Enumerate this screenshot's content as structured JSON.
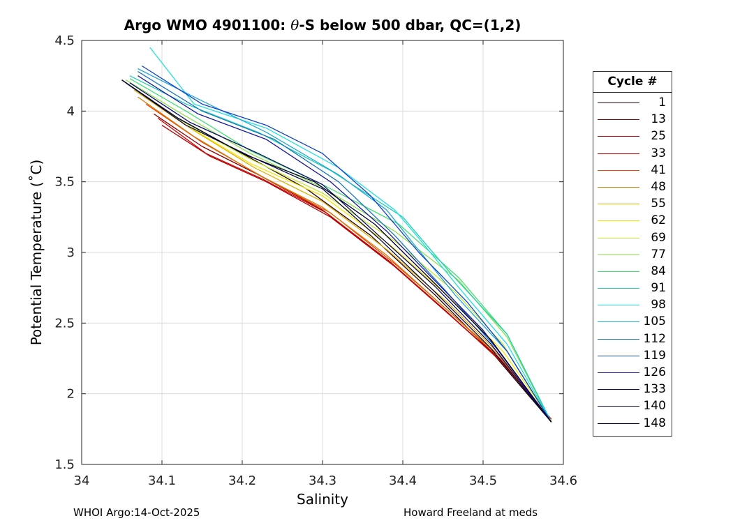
{
  "title_prefix": "Argo WMO 4901100: ",
  "title_theta": "θ",
  "title_suffix": "-S below 500 dbar,  QC=(1,2)",
  "footer": {
    "left": "WHOI Argo:14-Oct-2025",
    "right": "Howard Freeland at meds"
  },
  "legend": {
    "title": "Cycle #",
    "items": [
      {
        "label": "1",
        "color": "#2a0000"
      },
      {
        "label": "13",
        "color": "#8b0000"
      },
      {
        "label": "25",
        "color": "#b30000"
      },
      {
        "label": "33",
        "color": "#d40000"
      },
      {
        "label": "41",
        "color": "#e84a00"
      },
      {
        "label": "48",
        "color": "#d97800"
      },
      {
        "label": "55",
        "color": "#e0b000"
      },
      {
        "label": "62",
        "color": "#f2e600"
      },
      {
        "label": "69",
        "color": "#c6e830"
      },
      {
        "label": "77",
        "color": "#8ce04a"
      },
      {
        "label": "84",
        "color": "#40e070"
      },
      {
        "label": "91",
        "color": "#20d0b0"
      },
      {
        "label": "98",
        "color": "#20e0e0"
      },
      {
        "label": "105",
        "color": "#20a8d8"
      },
      {
        "label": "112",
        "color": "#1878c0"
      },
      {
        "label": "119",
        "color": "#1040d0"
      },
      {
        "label": "126",
        "color": "#1818a0"
      },
      {
        "label": "133",
        "color": "#0c0c70"
      },
      {
        "label": "140",
        "color": "#080840"
      },
      {
        "label": "148",
        "color": "#000030"
      }
    ]
  },
  "chart_data": {
    "type": "line",
    "title": "Argo WMO 4901100: θ-S below 500 dbar,  QC=(1,2)",
    "xlabel": "Salinity",
    "ylabel": "Potential Temperature (˚C)",
    "xlim": [
      34,
      34.6
    ],
    "ylim": [
      1.5,
      4.5
    ],
    "xticks": [
      "34",
      "34.1",
      "34.2",
      "34.3",
      "34.4",
      "34.5",
      "34.6"
    ],
    "yticks": [
      "1.5",
      "2",
      "2.5",
      "3",
      "3.5",
      "4",
      "4.5"
    ],
    "grid": true,
    "series": [
      {
        "name": "1",
        "color": "#2a0000",
        "x": [
          34.05,
          34.12,
          34.2,
          34.28,
          34.36,
          34.44,
          34.51,
          34.585
        ],
        "y": [
          4.22,
          3.95,
          3.7,
          3.45,
          3.12,
          2.7,
          2.3,
          1.8
        ]
      },
      {
        "name": "13",
        "color": "#8b0000",
        "x": [
          34.09,
          34.15,
          34.22,
          34.3,
          34.38,
          34.45,
          34.52,
          34.585
        ],
        "y": [
          3.98,
          3.75,
          3.55,
          3.3,
          2.95,
          2.6,
          2.25,
          1.82
        ]
      },
      {
        "name": "25",
        "color": "#b30000",
        "x": [
          34.1,
          34.16,
          34.23,
          34.31,
          34.39,
          34.46,
          34.525,
          34.585
        ],
        "y": [
          3.9,
          3.68,
          3.5,
          3.25,
          2.9,
          2.55,
          2.22,
          1.81
        ]
      },
      {
        "name": "33",
        "color": "#d40000",
        "x": [
          34.095,
          34.155,
          34.225,
          34.305,
          34.385,
          34.455,
          34.52,
          34.585
        ],
        "y": [
          3.95,
          3.7,
          3.52,
          3.28,
          2.93,
          2.58,
          2.24,
          1.82
        ]
      },
      {
        "name": "41",
        "color": "#e84a00",
        "x": [
          34.08,
          34.15,
          34.23,
          34.31,
          34.39,
          34.46,
          34.525,
          34.585
        ],
        "y": [
          4.05,
          3.78,
          3.52,
          3.28,
          2.92,
          2.57,
          2.23,
          1.81
        ]
      },
      {
        "name": "48",
        "color": "#d97800",
        "x": [
          34.07,
          34.14,
          34.22,
          34.3,
          34.38,
          34.45,
          34.52,
          34.585
        ],
        "y": [
          4.1,
          3.82,
          3.55,
          3.32,
          2.98,
          2.62,
          2.27,
          1.81
        ]
      },
      {
        "name": "55",
        "color": "#e0b000",
        "x": [
          34.065,
          34.135,
          34.215,
          34.3,
          34.38,
          34.455,
          34.52,
          34.585
        ],
        "y": [
          4.15,
          3.88,
          3.6,
          3.36,
          3.02,
          2.65,
          2.28,
          1.81
        ]
      },
      {
        "name": "62",
        "color": "#f2e600",
        "x": [
          34.06,
          34.13,
          34.21,
          34.3,
          34.385,
          34.46,
          34.525,
          34.585
        ],
        "y": [
          4.18,
          3.9,
          3.63,
          3.4,
          3.05,
          2.67,
          2.3,
          1.81
        ]
      },
      {
        "name": "69",
        "color": "#c6e830",
        "x": [
          34.055,
          34.125,
          34.21,
          34.3,
          34.39,
          34.465,
          34.525,
          34.585
        ],
        "y": [
          4.2,
          3.93,
          3.66,
          3.42,
          3.08,
          2.72,
          2.35,
          1.8
        ]
      },
      {
        "name": "77",
        "color": "#8ce04a",
        "x": [
          34.055,
          34.125,
          34.21,
          34.3,
          34.39,
          34.47,
          34.53,
          34.585
        ],
        "y": [
          4.22,
          3.98,
          3.7,
          3.46,
          3.15,
          2.8,
          2.4,
          1.8
        ]
      },
      {
        "name": "84",
        "color": "#40e070",
        "x": [
          34.06,
          34.13,
          34.21,
          34.3,
          34.395,
          34.47,
          34.53,
          34.585
        ],
        "y": [
          4.23,
          4.0,
          3.72,
          3.48,
          3.2,
          2.82,
          2.42,
          1.8
        ]
      },
      {
        "name": "91",
        "color": "#20d0b0",
        "x": [
          34.06,
          34.13,
          34.22,
          34.31,
          34.4,
          34.46,
          34.53,
          34.585
        ],
        "y": [
          4.25,
          4.05,
          3.85,
          3.58,
          3.25,
          2.85,
          2.42,
          1.8
        ]
      },
      {
        "name": "98",
        "color": "#20e0e0",
        "x": [
          34.085,
          34.14,
          34.23,
          34.32,
          34.39,
          34.42,
          34.47,
          34.53,
          34.585
        ],
        "y": [
          4.45,
          4.05,
          3.88,
          3.6,
          3.3,
          3.1,
          2.75,
          2.35,
          1.8
        ]
      },
      {
        "name": "105",
        "color": "#20a8d8",
        "x": [
          34.07,
          34.14,
          34.23,
          34.32,
          34.38,
          34.415,
          34.465,
          34.53,
          34.585
        ],
        "y": [
          4.3,
          4.1,
          3.85,
          3.55,
          3.3,
          3.05,
          2.7,
          2.3,
          1.8
        ]
      },
      {
        "name": "112",
        "color": "#1878c0",
        "x": [
          34.07,
          34.15,
          34.24,
          34.32,
          34.39,
          34.45,
          34.52,
          34.585
        ],
        "y": [
          4.28,
          4.0,
          3.8,
          3.5,
          3.12,
          2.75,
          2.3,
          1.8
        ]
      },
      {
        "name": "119",
        "color": "#1040d0",
        "x": [
          34.075,
          34.15,
          34.23,
          34.3,
          34.36,
          34.42,
          34.48,
          34.53,
          34.585
        ],
        "y": [
          4.32,
          4.05,
          3.9,
          3.7,
          3.4,
          3.0,
          2.65,
          2.3,
          1.8
        ]
      },
      {
        "name": "126",
        "color": "#1818a0",
        "x": [
          34.07,
          34.145,
          34.23,
          34.31,
          34.38,
          34.44,
          34.5,
          34.585
        ],
        "y": [
          4.25,
          3.98,
          3.8,
          3.5,
          3.15,
          2.8,
          2.45,
          1.8
        ]
      },
      {
        "name": "133",
        "color": "#0c0c70",
        "x": [
          34.06,
          34.135,
          34.22,
          34.3,
          34.37,
          34.44,
          34.51,
          34.585
        ],
        "y": [
          4.2,
          3.92,
          3.7,
          3.48,
          3.12,
          2.76,
          2.35,
          1.8
        ]
      },
      {
        "name": "140",
        "color": "#080840",
        "x": [
          34.055,
          34.13,
          34.21,
          34.3,
          34.37,
          34.44,
          34.51,
          34.585
        ],
        "y": [
          4.2,
          3.9,
          3.68,
          3.45,
          3.1,
          2.72,
          2.32,
          1.8
        ]
      },
      {
        "name": "148",
        "color": "#000030",
        "x": [
          34.05,
          34.12,
          34.2,
          34.29,
          34.365,
          34.44,
          34.51,
          34.585
        ],
        "y": [
          4.22,
          3.95,
          3.7,
          3.5,
          3.2,
          2.78,
          2.38,
          1.8
        ]
      }
    ]
  }
}
